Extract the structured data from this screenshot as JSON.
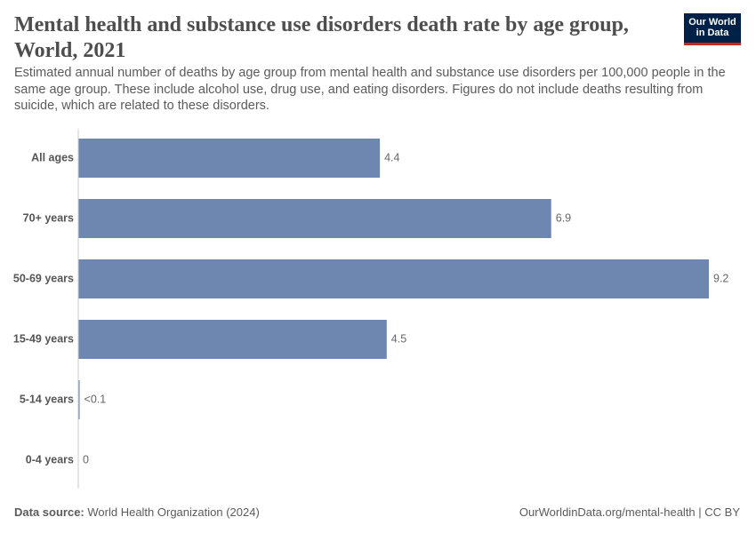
{
  "chart_data": {
    "type": "bar",
    "orientation": "horizontal",
    "title": "Mental health and substance use disorders death rate by age group, World, 2021",
    "subtitle": "Estimated annual number of deaths by age group from mental health and substance use disorders per 100,000 people in the same age group. These include alcohol use, drug use, and eating disorders. Figures do not include deaths resulting from suicide, which are related to these disorders.",
    "categories": [
      "All ages",
      "70+ years",
      "50-69 years",
      "15-49 years",
      "5-14 years",
      "0-4 years"
    ],
    "values": [
      4.4,
      6.9,
      9.2,
      4.5,
      0.02,
      0
    ],
    "value_labels": [
      "4.4",
      "6.9",
      "9.2",
      "4.5",
      "<0.1",
      "0"
    ],
    "color": "#6d87b0",
    "logo": [
      "Our World",
      "in Data"
    ],
    "source_label": "Data source:",
    "source": "World Health Organization (2024)",
    "footer_right": "OurWorldinData.org/mental-health | CC BY"
  }
}
